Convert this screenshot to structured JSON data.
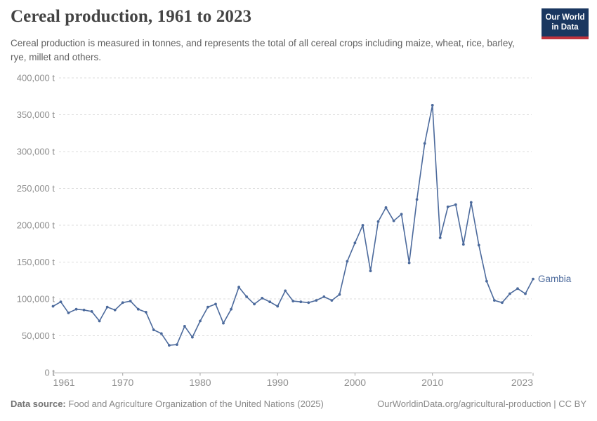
{
  "header": {
    "title": "Cereal production, 1961 to 2023",
    "subtitle": "Cereal production is measured in tonnes, and represents the total of all cereal crops including maize, wheat, rice, barley, rye, millet and others.",
    "logo": {
      "line1": "Our World",
      "line2": "in Data"
    }
  },
  "chart_data": {
    "type": "line",
    "title": "Cereal production, 1961 to 2023",
    "xlabel": "",
    "ylabel": "tonnes",
    "xlim": [
      1961,
      2023
    ],
    "ylim": [
      0,
      400000
    ],
    "grid": "horizontal dashed",
    "legend_position": "end-of-line label",
    "x": [
      1961,
      1962,
      1963,
      1964,
      1965,
      1966,
      1967,
      1968,
      1969,
      1970,
      1971,
      1972,
      1973,
      1974,
      1975,
      1976,
      1977,
      1978,
      1979,
      1980,
      1981,
      1982,
      1983,
      1984,
      1985,
      1986,
      1987,
      1988,
      1989,
      1990,
      1991,
      1992,
      1993,
      1994,
      1995,
      1996,
      1997,
      1998,
      1999,
      2000,
      2001,
      2002,
      2003,
      2004,
      2005,
      2006,
      2007,
      2008,
      2009,
      2010,
      2011,
      2012,
      2013,
      2014,
      2015,
      2016,
      2017,
      2018,
      2019,
      2020,
      2021,
      2022,
      2023
    ],
    "series": [
      {
        "name": "Gambia",
        "values": [
          90000,
          96000,
          81000,
          86000,
          85000,
          83000,
          70000,
          89000,
          85000,
          95000,
          97000,
          86000,
          82000,
          58000,
          53000,
          37000,
          38000,
          63000,
          48000,
          70000,
          89000,
          93000,
          67000,
          86000,
          116000,
          103000,
          93000,
          101000,
          96000,
          90000,
          111000,
          97000,
          96000,
          95000,
          98000,
          103000,
          98000,
          106000,
          151000,
          176000,
          200000,
          138000,
          205000,
          224000,
          206000,
          215000,
          149000,
          235000,
          311000,
          363000,
          183000,
          225000,
          228000,
          174000,
          231000,
          173000,
          124000,
          98000,
          95000,
          107000,
          114000,
          107000,
          127000
        ]
      }
    ],
    "y_ticks": [
      {
        "value": 0,
        "label": "0 t"
      },
      {
        "value": 50000,
        "label": "50,000 t"
      },
      {
        "value": 100000,
        "label": "100,000 t"
      },
      {
        "value": 150000,
        "label": "150,000 t"
      },
      {
        "value": 200000,
        "label": "200,000 t"
      },
      {
        "value": 250000,
        "label": "250,000 t"
      },
      {
        "value": 300000,
        "label": "300,000 t"
      },
      {
        "value": 350000,
        "label": "350,000 t"
      },
      {
        "value": 400000,
        "label": "400,000 t"
      }
    ],
    "x_ticks": [
      {
        "value": 1961,
        "label": "1961"
      },
      {
        "value": 1970,
        "label": "1970"
      },
      {
        "value": 1980,
        "label": "1980"
      },
      {
        "value": 1990,
        "label": "1990"
      },
      {
        "value": 2000,
        "label": "2000"
      },
      {
        "value": 2010,
        "label": "2010"
      },
      {
        "value": 2023,
        "label": "2023"
      }
    ]
  },
  "footer": {
    "source_label": "Data source:",
    "source_text": "Food and Agriculture Organization of the United Nations (2025)",
    "credit": "OurWorldinData.org/agricultural-production | CC BY"
  },
  "colors": {
    "series": "#4C6A9C",
    "grid": "#dcdcdc",
    "axis": "#a5a5a5",
    "tick_text": "#8e8e8e",
    "logo_bg": "#1a3760",
    "logo_stripe": "#c0333d"
  }
}
